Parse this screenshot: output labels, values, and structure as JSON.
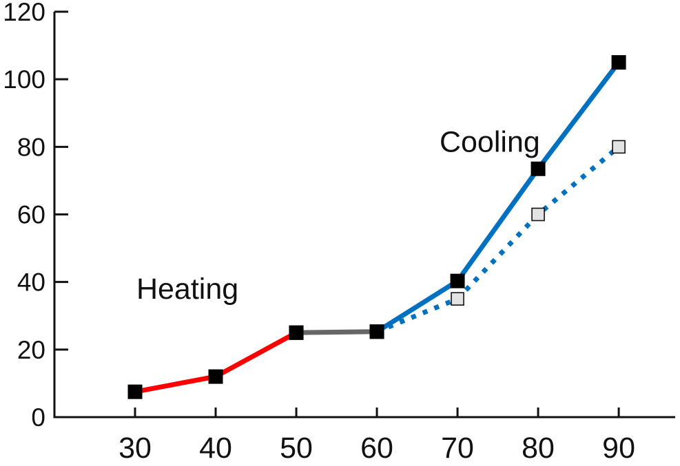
{
  "chart_data": {
    "type": "line",
    "title": "",
    "xlabel": "",
    "ylabel": "",
    "xlim": [
      20,
      97
    ],
    "ylim": [
      0,
      120
    ],
    "xticks": [
      30,
      40,
      50,
      60,
      70,
      80,
      90
    ],
    "yticks": [
      0,
      20,
      40,
      60,
      80,
      100,
      120
    ],
    "grid": false,
    "series": [
      {
        "style": "solid",
        "color": "#ff0000",
        "marker": "filled-square",
        "x": [
          30,
          40,
          50
        ],
        "y": [
          7.5,
          12,
          25
        ]
      },
      {
        "style": "solid",
        "color": "#666666",
        "marker": "filled-square",
        "x": [
          50,
          60
        ],
        "y": [
          25,
          25.3
        ]
      },
      {
        "style": "solid",
        "color": "#0070c0",
        "marker": "filled-square",
        "x": [
          60,
          70,
          80,
          90
        ],
        "y": [
          25.3,
          40.3,
          73.5,
          105
        ]
      },
      {
        "style": "dotted",
        "color": "#0070c0",
        "marker": "open-square",
        "x": [
          60,
          70,
          80,
          90
        ],
        "y": [
          25.3,
          35,
          60,
          80
        ]
      }
    ],
    "annotations": [
      {
        "text": "Heating",
        "x": 36.5,
        "y": 35
      },
      {
        "text": "Cooling",
        "x": 74,
        "y": 78.5
      }
    ]
  }
}
